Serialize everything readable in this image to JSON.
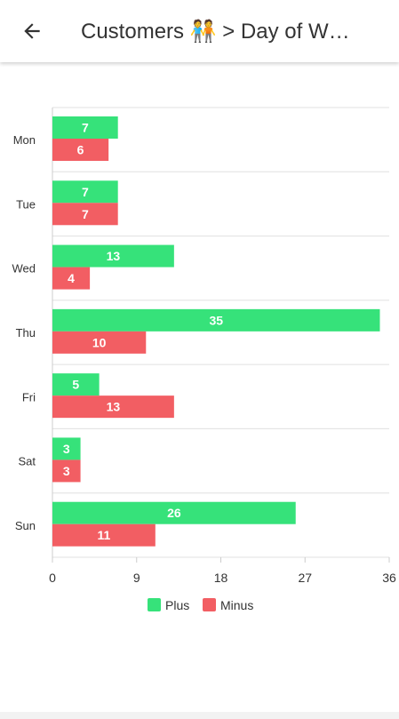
{
  "header": {
    "back_icon": "arrow-left-icon",
    "title": "Customers 🧑‍🤝‍🧑 > Day of W…"
  },
  "chart_data": {
    "type": "bar",
    "orientation": "horizontal",
    "categories": [
      "Mon",
      "Tue",
      "Wed",
      "Thu",
      "Fri",
      "Sat",
      "Sun"
    ],
    "series": [
      {
        "name": "Plus",
        "color": "#36e27a",
        "values": [
          7,
          7,
          13,
          35,
          5,
          3,
          26
        ]
      },
      {
        "name": "Minus",
        "color": "#f25e63",
        "values": [
          6,
          7,
          4,
          10,
          13,
          3,
          11
        ]
      }
    ],
    "xticks": [
      0,
      9,
      18,
      27,
      36
    ],
    "xlim": [
      0,
      36
    ],
    "grid": true,
    "legend": "bottom",
    "data_labels": true
  }
}
